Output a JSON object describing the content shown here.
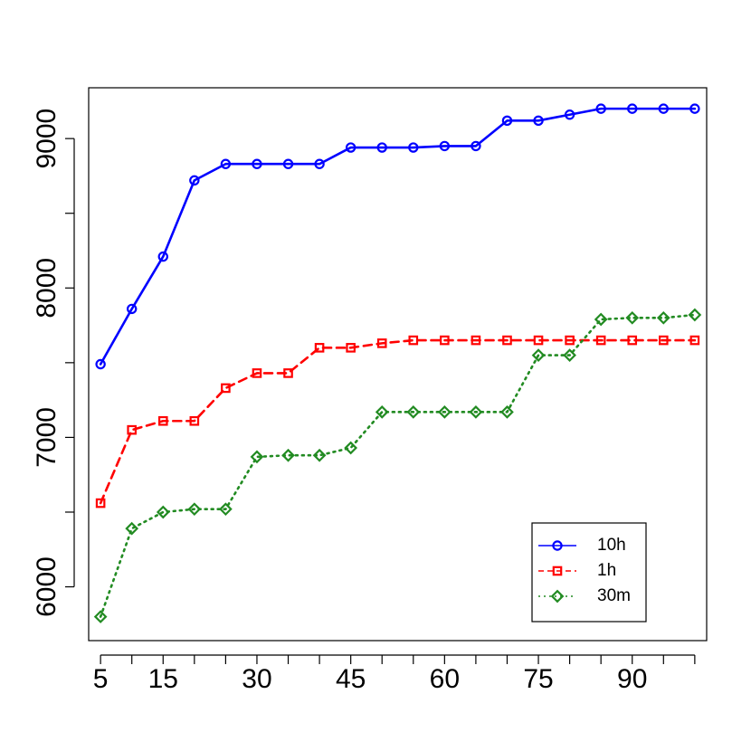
{
  "chart_data": {
    "type": "line",
    "title": "",
    "xlabel": "",
    "ylabel": "",
    "xlim": [
      3.1,
      101.9
    ],
    "ylim": [
      5640,
      9340
    ],
    "x": [
      5,
      10,
      15,
      20,
      25,
      30,
      35,
      40,
      45,
      50,
      55,
      60,
      65,
      70,
      75,
      80,
      85,
      90,
      95,
      100
    ],
    "x_ticks": [
      5,
      10,
      15,
      20,
      25,
      30,
      35,
      40,
      45,
      50,
      55,
      60,
      65,
      70,
      75,
      80,
      85,
      90,
      95,
      100
    ],
    "x_tick_labels": [
      "5",
      "15",
      "30",
      "45",
      "60",
      "75",
      "90"
    ],
    "x_tick_label_values": [
      5,
      15,
      30,
      45,
      60,
      75,
      90
    ],
    "y_ticks": [
      6000,
      6500,
      7000,
      7500,
      8000,
      8500,
      9000
    ],
    "y_tick_labels": [
      "6000",
      "7000",
      "8000",
      "9000"
    ],
    "y_tick_label_values": [
      6000,
      7000,
      8000,
      9000
    ],
    "grid": false,
    "legend_position": "bottom-right",
    "series": [
      {
        "name": "10h",
        "color": "#0000ff",
        "marker": "circle",
        "line_style": "solid",
        "values": [
          7490,
          7860,
          8210,
          8720,
          8830,
          8830,
          8830,
          8830,
          8940,
          8940,
          8940,
          8950,
          8950,
          9120,
          9120,
          9160,
          9200,
          9200,
          9200,
          9200
        ]
      },
      {
        "name": "1h",
        "color": "#ff0000",
        "marker": "square",
        "line_style": "dashed",
        "values": [
          6560,
          7050,
          7110,
          7110,
          7330,
          7430,
          7430,
          7600,
          7600,
          7630,
          7650,
          7650,
          7650,
          7650,
          7650,
          7650,
          7650,
          7650,
          7650,
          7650
        ]
      },
      {
        "name": "30m",
        "color": "#228b22",
        "marker": "diamond",
        "line_style": "dotted",
        "values": [
          5800,
          6390,
          6500,
          6520,
          6520,
          6870,
          6880,
          6880,
          6930,
          7170,
          7170,
          7170,
          7170,
          7170,
          7550,
          7550,
          7790,
          7800,
          7800,
          7820
        ]
      }
    ]
  }
}
